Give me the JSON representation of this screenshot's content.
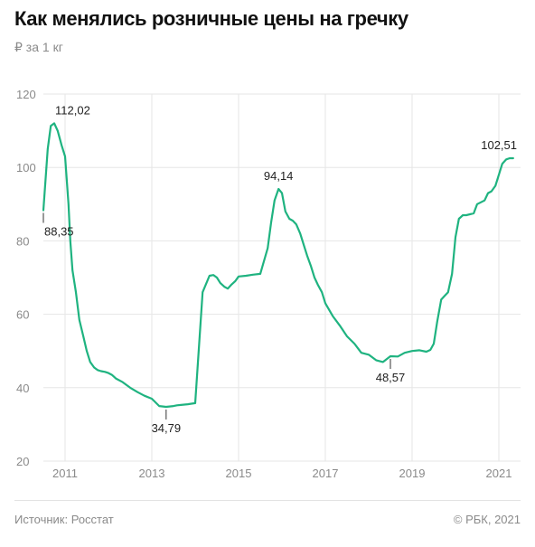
{
  "header": {
    "title": "Как менялись розничные цены на гречку",
    "subtitle": "₽ за 1 кг"
  },
  "footer": {
    "source": "Источник: Росстат",
    "copyright": "© РБК, 2021"
  },
  "colors": {
    "line": "#1fb380",
    "grid": "#e6e6e6",
    "axis_text": "#8a8a8a",
    "annotation_text": "#222222"
  },
  "chart_data": {
    "type": "line",
    "title": "Как менялись розничные цены на гречку",
    "ylabel": "₽ за 1 кг",
    "ylim": [
      20,
      120
    ],
    "yticks": [
      20,
      40,
      60,
      80,
      100,
      120
    ],
    "xlim": [
      2010.5,
      2021.5
    ],
    "xticks": [
      2011,
      2013,
      2015,
      2017,
      2019,
      2021
    ],
    "xtick_labels": [
      "2011",
      "2013",
      "2015",
      "2017",
      "2019",
      "2021"
    ],
    "grid": true,
    "series": [
      {
        "x": [
          2010.5,
          2010.6,
          2010.67,
          2010.75,
          2010.83,
          2010.92,
          2011.0,
          2011.08,
          2011.12,
          2011.17,
          2011.25,
          2011.33,
          2011.42,
          2011.5,
          2011.58,
          2011.67,
          2011.75,
          2011.83,
          2011.92,
          2012.0,
          2012.08,
          2012.17,
          2012.33,
          2012.5,
          2012.67,
          2012.83,
          2013.0,
          2013.17,
          2013.33,
          2013.5,
          2013.58,
          2013.67,
          2013.75,
          2013.83,
          2014.0,
          2014.17,
          2014.33,
          2014.42,
          2014.5,
          2014.58,
          2014.67,
          2014.75,
          2014.83,
          2014.92,
          2015.0,
          2015.17,
          2015.33,
          2015.5,
          2015.67,
          2015.75,
          2015.83,
          2015.92,
          2016.0,
          2016.08,
          2016.17,
          2016.25,
          2016.33,
          2016.42,
          2016.5,
          2016.58,
          2016.67,
          2016.75,
          2016.83,
          2016.92,
          2017.0,
          2017.17,
          2017.33,
          2017.5,
          2017.67,
          2017.83,
          2018.0,
          2018.17,
          2018.33,
          2018.5,
          2018.67,
          2018.83,
          2019.0,
          2019.17,
          2019.33,
          2019.42,
          2019.5,
          2019.58,
          2019.67,
          2019.75,
          2019.83,
          2019.92,
          2020.0,
          2020.08,
          2020.17,
          2020.25,
          2020.42,
          2020.5,
          2020.67,
          2020.75,
          2020.83,
          2020.92,
          2021.0,
          2021.08,
          2021.17,
          2021.25,
          2021.33
        ],
        "y": [
          88.35,
          105,
          111.3,
          112.02,
          110,
          106,
          103,
          90,
          80,
          72,
          66,
          58.5,
          54,
          50,
          47,
          45.5,
          44.8,
          44.5,
          44.3,
          44,
          43.5,
          42.5,
          41.5,
          40,
          38.8,
          37.8,
          37,
          35,
          34.79,
          35,
          35.2,
          35.3,
          35.4,
          35.5,
          35.8,
          66,
          70.5,
          70.7,
          70,
          68.5,
          67.5,
          67,
          68,
          69,
          70.3,
          70.5,
          70.8,
          71,
          78,
          85,
          91,
          94.14,
          93,
          88,
          86,
          85.5,
          84.5,
          82,
          79,
          76,
          73,
          70,
          68,
          66,
          63,
          59.5,
          57,
          54,
          52,
          49.5,
          49,
          47.5,
          47,
          48.57,
          48.5,
          49.5,
          50,
          50.2,
          49.8,
          50.3,
          52,
          58,
          64,
          65,
          66,
          71,
          81,
          86,
          87,
          87,
          87.5,
          90,
          91,
          93,
          93.5,
          95,
          98,
          101,
          102.2,
          102.51,
          102.51
        ]
      }
    ],
    "annotations": [
      {
        "label": "112,02",
        "x": 2010.75,
        "y": 112.02,
        "position": "above"
      },
      {
        "label": "88,35",
        "x": 2010.5,
        "y": 88.35,
        "position": "below"
      },
      {
        "label": "34,79",
        "x": 2013.33,
        "y": 34.79,
        "position": "below"
      },
      {
        "label": "94,14",
        "x": 2015.92,
        "y": 94.14,
        "position": "above"
      },
      {
        "label": "48,57",
        "x": 2018.5,
        "y": 48.57,
        "position": "below"
      },
      {
        "label": "102,51",
        "x": 2021.25,
        "y": 102.51,
        "position": "above"
      }
    ]
  }
}
